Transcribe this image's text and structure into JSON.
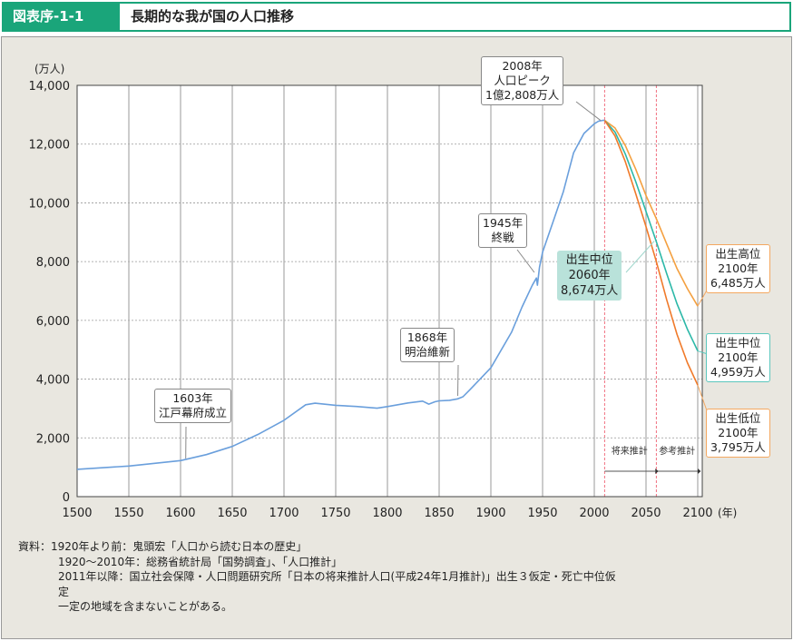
{
  "header": {
    "label": "図表序-1-1",
    "title": "長期的な我が国の人口推移"
  },
  "chart_data": {
    "type": "line",
    "ylabel": "(万人)",
    "xunit": "(年)",
    "xlim": [
      1500,
      2105
    ],
    "ylim": [
      0,
      14000
    ],
    "xticks": [
      1500,
      1550,
      1600,
      1650,
      1700,
      1750,
      1800,
      1850,
      1900,
      1950,
      2000,
      2050,
      2100
    ],
    "yticks": [
      "0",
      "2,000",
      "4,000",
      "6,000",
      "8,000",
      "10,000",
      "12,000",
      "14,000"
    ],
    "yticks_values": [
      0,
      2000,
      4000,
      6000,
      8000,
      10000,
      12000,
      14000
    ],
    "grid": {
      "horizontal": "dashed",
      "vertical": "solid"
    },
    "reference_lines": [
      2010,
      2060
    ],
    "series": [
      {
        "key": "actual",
        "color": "#6a9fdc",
        "x": [
          1500,
          1550,
          1600,
          1625,
          1650,
          1675,
          1700,
          1721,
          1730,
          1750,
          1770,
          1790,
          1800,
          1820,
          1834,
          1840,
          1846,
          1850,
          1860,
          1868,
          1873,
          1880,
          1900,
          1920,
          1930,
          1940,
          1944,
          1945,
          1947,
          1950,
          1960,
          1970,
          1980,
          1990,
          2000,
          2004,
          2008,
          2010
        ],
        "y": [
          930,
          1040,
          1227,
          1430,
          1710,
          2120,
          2600,
          3128,
          3180,
          3110,
          3070,
          3010,
          3065,
          3190,
          3250,
          3150,
          3230,
          3260,
          3280,
          3330,
          3400,
          3650,
          4385,
          5596,
          6445,
          7193,
          7443,
          7199,
          7810,
          8320,
          9342,
          10372,
          11706,
          12361,
          12693,
          12779,
          12808,
          12806
        ]
      },
      {
        "key": "high",
        "color": "#f4a040",
        "x": [
          2010,
          2020,
          2030,
          2040,
          2050,
          2060,
          2070,
          2080,
          2090,
          2100
        ],
        "y": [
          12806,
          12550,
          11950,
          11150,
          10250,
          9460,
          8600,
          7760,
          7080,
          6485
        ]
      },
      {
        "key": "medium",
        "color": "#2cb8a8",
        "x": [
          2010,
          2020,
          2030,
          2040,
          2050,
          2060,
          2070,
          2080,
          2090,
          2100
        ],
        "y": [
          12806,
          12410,
          11662,
          10728,
          9708,
          8674,
          7590,
          6560,
          5700,
          4959
        ]
      },
      {
        "key": "low",
        "color": "#f07a2a",
        "x": [
          2010,
          2020,
          2030,
          2040,
          2050,
          2060,
          2070,
          2080,
          2090,
          2100
        ],
        "y": [
          12806,
          12280,
          11400,
          10320,
          9190,
          7997,
          6700,
          5520,
          4560,
          3795
        ]
      }
    ],
    "annotations": {
      "edo": [
        "1603年",
        "江戸幕府成立"
      ],
      "meiji": [
        "1868年",
        "明治維新"
      ],
      "war": [
        "1945年",
        "終戦"
      ],
      "peak": [
        "2008年",
        "人口ピーク",
        "1億2,808万人"
      ],
      "mid2060": [
        "出生中位",
        "2060年",
        "8,674万人"
      ],
      "high2100": [
        "出生高位",
        "2100年",
        "6,485万人"
      ],
      "mid2100": [
        "出生中位",
        "2100年",
        "4,959万人"
      ],
      "low2100": [
        "出生低位",
        "2100年",
        "3,795万人"
      ],
      "proj1": "将来推計",
      "proj2": "参考推計"
    }
  },
  "notes": [
    "資料：1920年より前：鬼頭宏「人口から読む日本の歴史」",
    "1920～2010年：総務省統計局「国勢調査」、「人口推計」",
    "2011年以降：国立社会保障・人口問題研究所「日本の将来推計人口(平成24年1月推計)」出生３仮定・死亡中位仮",
    "定",
    "一定の地域を含まないことがある。"
  ]
}
